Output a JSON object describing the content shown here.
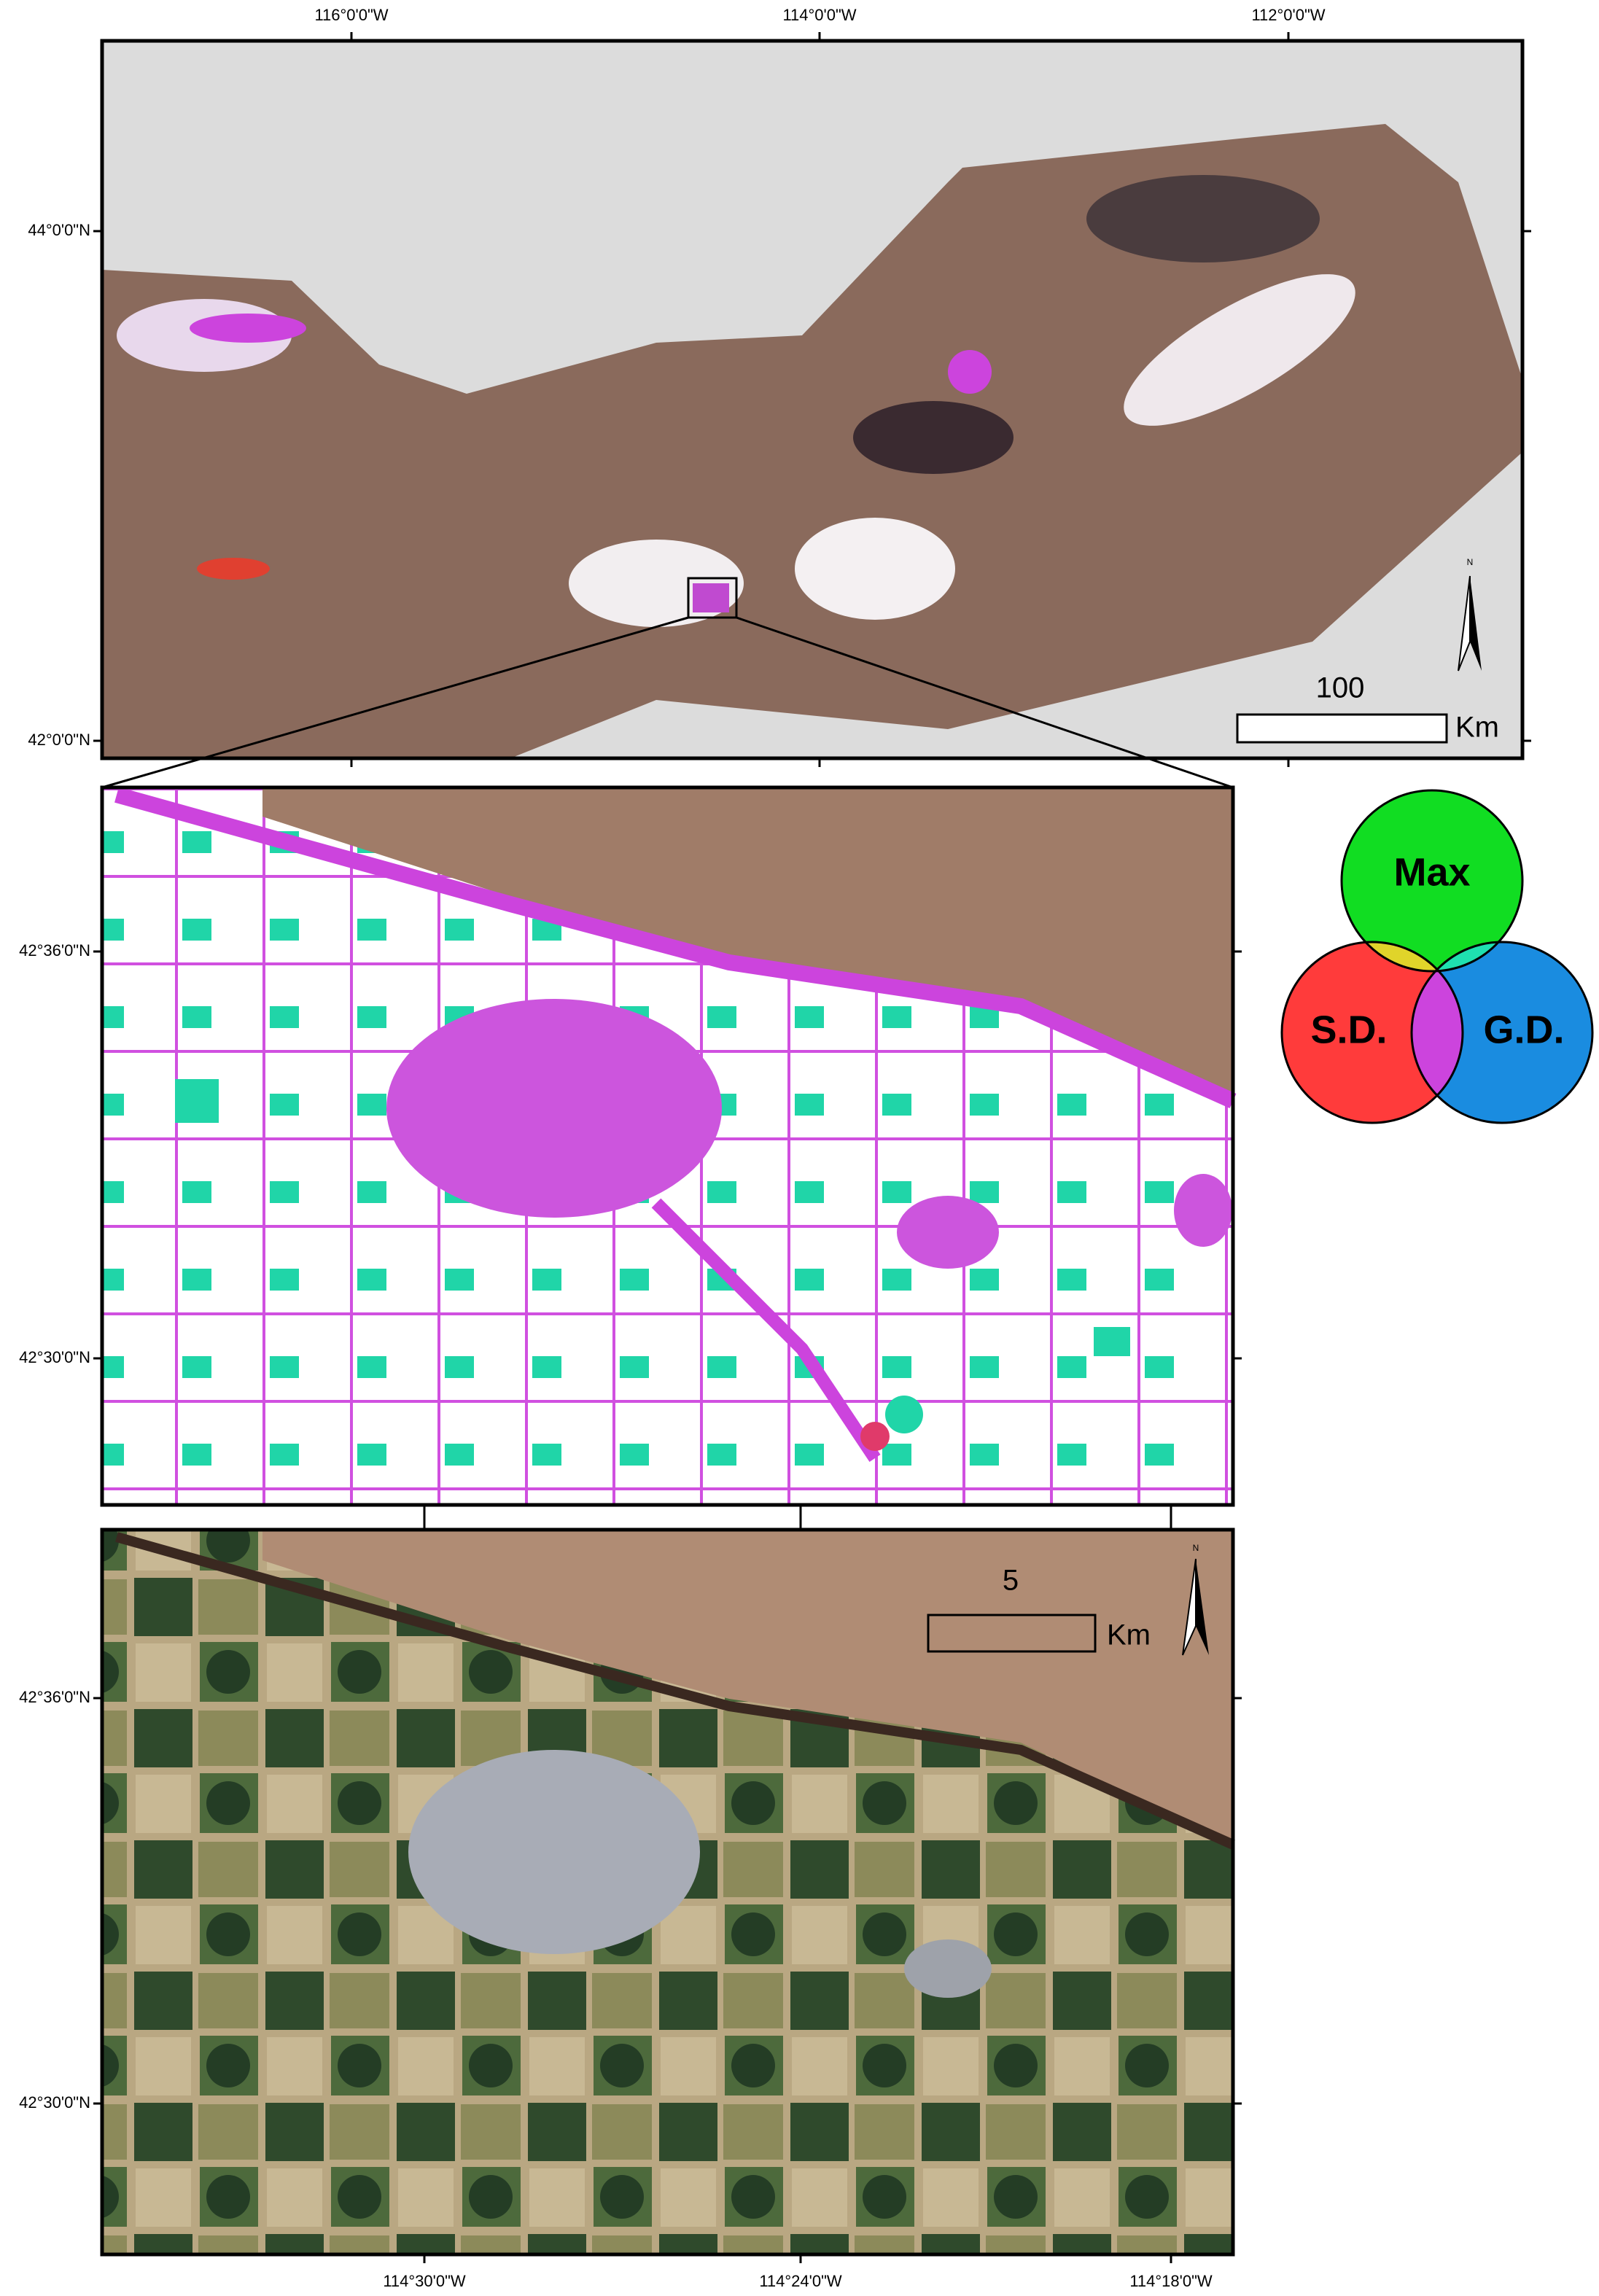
{
  "overview_map": {
    "top_labels": [
      "116°0'0\"W",
      "114°0'0\"W",
      "112°0'0\"W"
    ],
    "left_labels": [
      "44°0'0\"N",
      "42°0'0\"N"
    ],
    "scale_bar": {
      "distance": "100",
      "unit": "Km"
    },
    "north_label": "N"
  },
  "classification_map": {
    "left_labels": [
      "42°36'0\"N",
      "42°30'0\"N"
    ]
  },
  "legend": {
    "labels": [
      "Max",
      "S.D.",
      "G.D."
    ]
  },
  "image_map": {
    "left_labels": [
      "42°36'0\"N",
      "42°30'0\"N"
    ],
    "bottom_labels": [
      "114°30'0\"W",
      "114°24'0\"W",
      "114°18'0\"W"
    ],
    "scale_bar": {
      "distance": "5",
      "unit": "Km"
    },
    "north_label": "N"
  }
}
